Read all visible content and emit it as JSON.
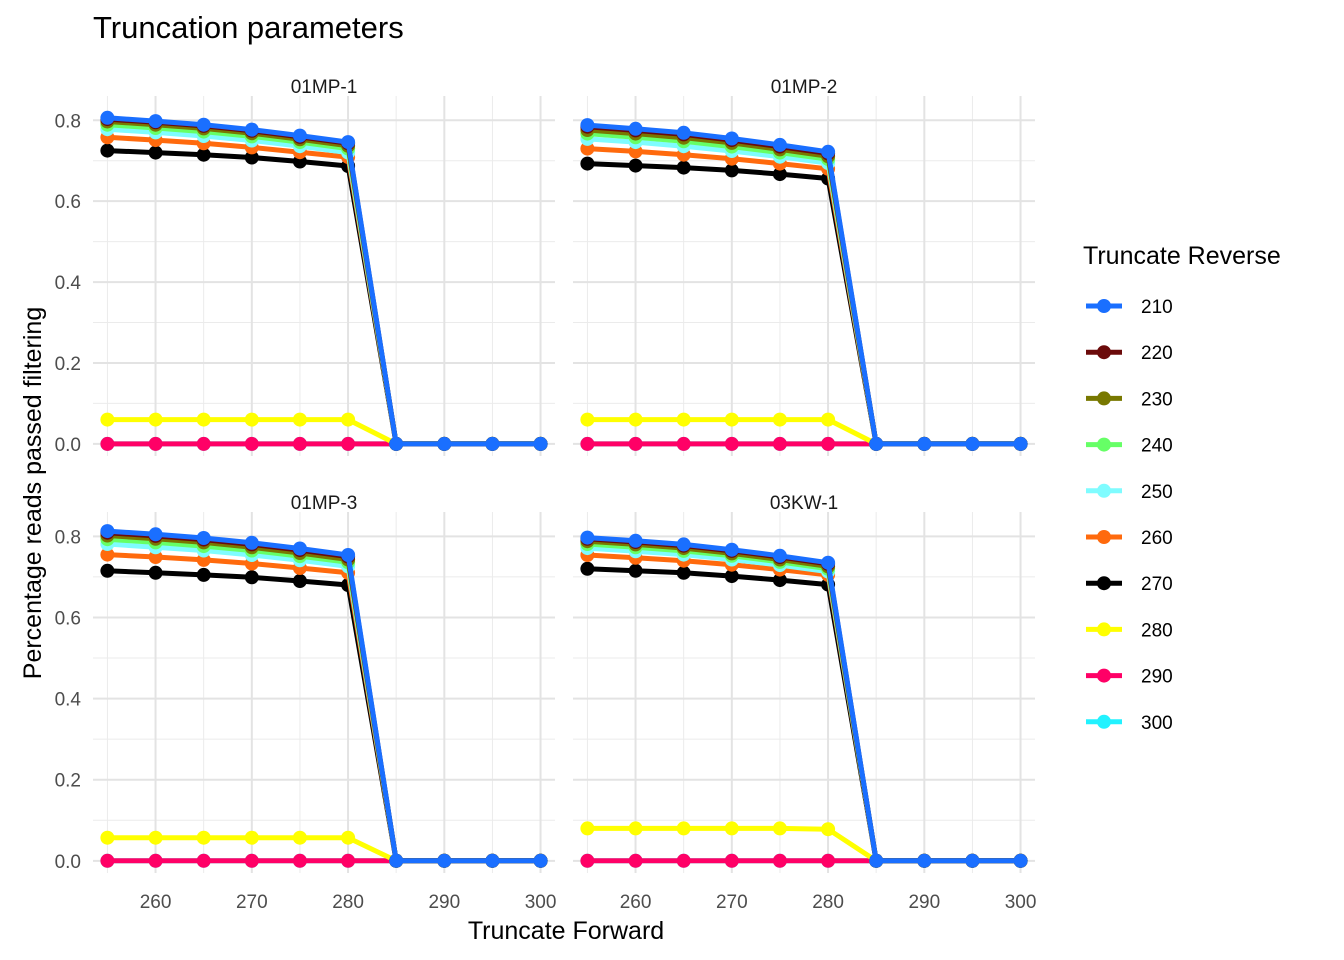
{
  "chart_data": {
    "type": "line",
    "title": "Truncation parameters",
    "xlabel": "Truncate Forward",
    "ylabel": "Percentage reads passed filtering",
    "legend_title": "Truncate Reverse",
    "legend_position": "right",
    "grid": true,
    "x": [
      255,
      260,
      265,
      270,
      275,
      280,
      285,
      290,
      295,
      300
    ],
    "xlim": [
      253.5,
      301.5
    ],
    "ylim": [
      -0.03,
      0.86
    ],
    "x_ticks": [
      260,
      270,
      280,
      290,
      300
    ],
    "y_ticks": [
      0.0,
      0.2,
      0.4,
      0.6,
      0.8
    ],
    "x_tick_labels": [
      "260",
      "270",
      "280",
      "290",
      "300"
    ],
    "y_tick_labels": [
      "0.0",
      "0.2",
      "0.4",
      "0.6",
      "0.8"
    ],
    "series_meta": [
      {
        "name": "210",
        "color": "#1a6fff"
      },
      {
        "name": "220",
        "color": "#6b0a0a"
      },
      {
        "name": "230",
        "color": "#787800"
      },
      {
        "name": "240",
        "color": "#66ff66"
      },
      {
        "name": "250",
        "color": "#7ffcff"
      },
      {
        "name": "260",
        "color": "#ff6a0d"
      },
      {
        "name": "270",
        "color": "#000000"
      },
      {
        "name": "280",
        "color": "#ffff00"
      },
      {
        "name": "290",
        "color": "#ff0066"
      },
      {
        "name": "300",
        "color": "#22f2ff"
      }
    ],
    "panels": [
      {
        "name": "01MP-1",
        "series": [
          {
            "name": "210",
            "values": [
              0.806,
              0.798,
              0.789,
              0.777,
              0.762,
              0.746,
              0,
              0,
              0,
              0
            ]
          },
          {
            "name": "220",
            "values": [
              0.803,
              0.795,
              0.786,
              0.774,
              0.759,
              0.743,
              0,
              0,
              0,
              0
            ]
          },
          {
            "name": "230",
            "values": [
              0.797,
              0.789,
              0.78,
              0.768,
              0.753,
              0.737,
              0,
              0,
              0,
              0
            ]
          },
          {
            "name": "240",
            "values": [
              0.789,
              0.781,
              0.772,
              0.76,
              0.746,
              0.73,
              0,
              0,
              0,
              0
            ]
          },
          {
            "name": "250",
            "values": [
              0.778,
              0.77,
              0.761,
              0.75,
              0.736,
              0.72,
              0,
              0,
              0,
              0
            ]
          },
          {
            "name": "260",
            "values": [
              0.758,
              0.751,
              0.743,
              0.733,
              0.721,
              0.709,
              0,
              0,
              0,
              0
            ]
          },
          {
            "name": "270",
            "values": [
              0.725,
              0.72,
              0.715,
              0.708,
              0.698,
              0.687,
              0,
              0,
              0,
              0
            ]
          },
          {
            "name": "280",
            "values": [
              0.06,
              0.06,
              0.06,
              0.06,
              0.06,
              0.06,
              0,
              0,
              0,
              0
            ]
          },
          {
            "name": "290",
            "values": [
              0,
              0,
              0,
              0,
              0,
              0,
              0,
              0,
              0,
              0
            ]
          },
          {
            "name": "300",
            "values": [
              0,
              0,
              0,
              0,
              0,
              0,
              0,
              0,
              0,
              0
            ]
          }
        ]
      },
      {
        "name": "01MP-2",
        "series": [
          {
            "name": "210",
            "values": [
              0.788,
              0.779,
              0.769,
              0.755,
              0.739,
              0.722,
              0,
              0,
              0,
              0
            ]
          },
          {
            "name": "220",
            "values": [
              0.784,
              0.775,
              0.765,
              0.751,
              0.735,
              0.718,
              0,
              0,
              0,
              0
            ]
          },
          {
            "name": "230",
            "values": [
              0.776,
              0.767,
              0.757,
              0.744,
              0.728,
              0.711,
              0,
              0,
              0,
              0
            ]
          },
          {
            "name": "240",
            "values": [
              0.767,
              0.758,
              0.748,
              0.735,
              0.72,
              0.704,
              0,
              0,
              0,
              0
            ]
          },
          {
            "name": "250",
            "values": [
              0.754,
              0.746,
              0.736,
              0.724,
              0.71,
              0.694,
              0,
              0,
              0,
              0
            ]
          },
          {
            "name": "260",
            "values": [
              0.73,
              0.723,
              0.715,
              0.705,
              0.693,
              0.68,
              0,
              0,
              0,
              0
            ]
          },
          {
            "name": "270",
            "values": [
              0.693,
              0.688,
              0.683,
              0.676,
              0.667,
              0.656,
              0,
              0,
              0,
              0
            ]
          },
          {
            "name": "280",
            "values": [
              0.06,
              0.06,
              0.06,
              0.06,
              0.06,
              0.06,
              0,
              0,
              0,
              0
            ]
          },
          {
            "name": "290",
            "values": [
              0,
              0,
              0,
              0,
              0,
              0,
              0,
              0,
              0,
              0
            ]
          },
          {
            "name": "300",
            "values": [
              0,
              0,
              0,
              0,
              0,
              0,
              0,
              0,
              0,
              0
            ]
          }
        ]
      },
      {
        "name": "01MP-3",
        "series": [
          {
            "name": "210",
            "values": [
              0.813,
              0.805,
              0.796,
              0.784,
              0.77,
              0.754,
              0,
              0,
              0,
              0
            ]
          },
          {
            "name": "220",
            "values": [
              0.809,
              0.801,
              0.792,
              0.78,
              0.766,
              0.75,
              0,
              0,
              0,
              0
            ]
          },
          {
            "name": "230",
            "values": [
              0.802,
              0.794,
              0.785,
              0.773,
              0.759,
              0.743,
              0,
              0,
              0,
              0
            ]
          },
          {
            "name": "240",
            "values": [
              0.793,
              0.785,
              0.776,
              0.765,
              0.751,
              0.736,
              0,
              0,
              0,
              0
            ]
          },
          {
            "name": "250",
            "values": [
              0.781,
              0.773,
              0.765,
              0.754,
              0.741,
              0.726,
              0,
              0,
              0,
              0
            ]
          },
          {
            "name": "260",
            "values": [
              0.755,
              0.749,
              0.742,
              0.733,
              0.722,
              0.71,
              0,
              0,
              0,
              0
            ]
          },
          {
            "name": "270",
            "values": [
              0.715,
              0.71,
              0.705,
              0.699,
              0.69,
              0.68,
              0,
              0,
              0,
              0
            ]
          },
          {
            "name": "280",
            "values": [
              0.057,
              0.057,
              0.057,
              0.057,
              0.057,
              0.057,
              0,
              0,
              0,
              0
            ]
          },
          {
            "name": "290",
            "values": [
              0,
              0,
              0,
              0,
              0,
              0,
              0,
              0,
              0,
              0
            ]
          },
          {
            "name": "300",
            "values": [
              0,
              0,
              0,
              0,
              0,
              0,
              0,
              0,
              0,
              0
            ]
          }
        ]
      },
      {
        "name": "03KW-1",
        "series": [
          {
            "name": "210",
            "values": [
              0.797,
              0.789,
              0.78,
              0.767,
              0.752,
              0.735,
              0,
              0,
              0,
              0
            ]
          },
          {
            "name": "220",
            "values": [
              0.794,
              0.786,
              0.777,
              0.764,
              0.749,
              0.732,
              0,
              0,
              0,
              0
            ]
          },
          {
            "name": "230",
            "values": [
              0.788,
              0.78,
              0.771,
              0.758,
              0.743,
              0.726,
              0,
              0,
              0,
              0
            ]
          },
          {
            "name": "240",
            "values": [
              0.781,
              0.773,
              0.764,
              0.752,
              0.737,
              0.72,
              0,
              0,
              0,
              0
            ]
          },
          {
            "name": "250",
            "values": [
              0.771,
              0.763,
              0.755,
              0.743,
              0.729,
              0.713,
              0,
              0,
              0,
              0
            ]
          },
          {
            "name": "260",
            "values": [
              0.754,
              0.747,
              0.74,
              0.73,
              0.718,
              0.705,
              0,
              0,
              0,
              0
            ]
          },
          {
            "name": "270",
            "values": [
              0.72,
              0.715,
              0.71,
              0.702,
              0.692,
              0.681,
              0,
              0,
              0,
              0
            ]
          },
          {
            "name": "280",
            "values": [
              0.08,
              0.08,
              0.08,
              0.08,
              0.08,
              0.078,
              0,
              0,
              0,
              0
            ]
          },
          {
            "name": "290",
            "values": [
              0,
              0,
              0,
              0,
              0,
              0,
              0,
              0,
              0,
              0
            ]
          },
          {
            "name": "300",
            "values": [
              0,
              0,
              0,
              0,
              0,
              0,
              0,
              0,
              0,
              0
            ]
          }
        ]
      }
    ]
  }
}
